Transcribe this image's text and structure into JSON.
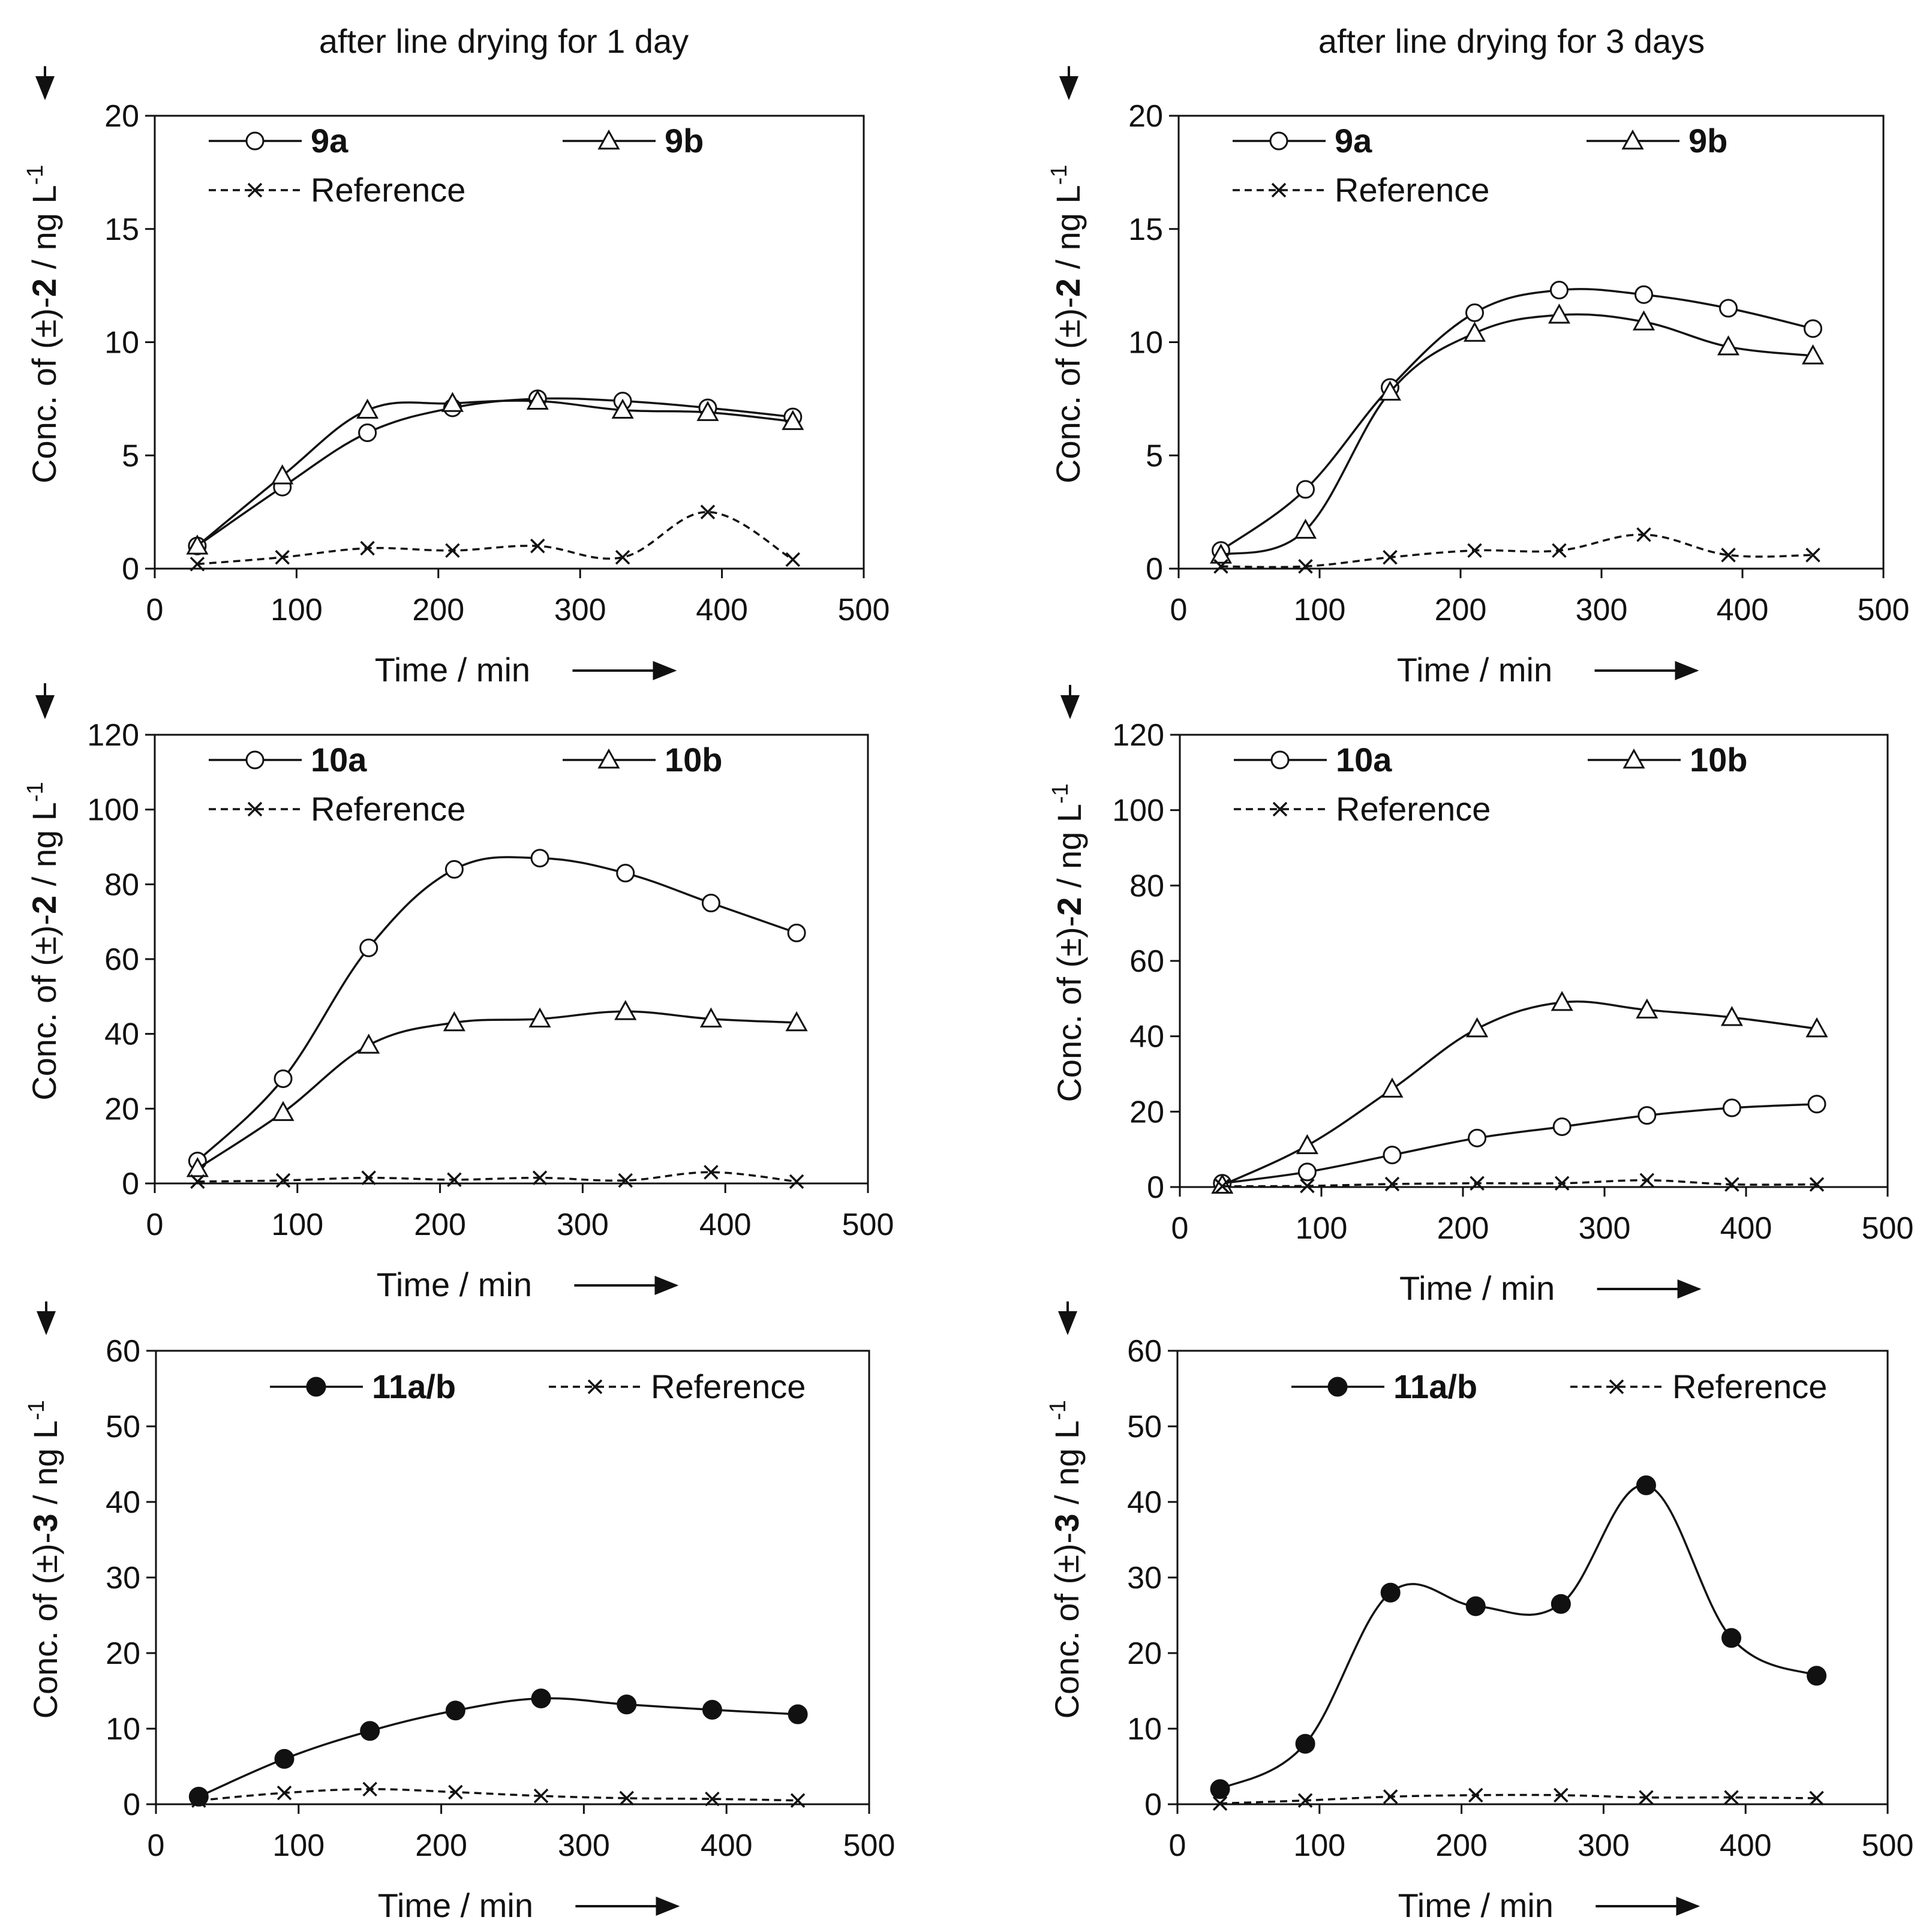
{
  "column_titles": [
    "after line drying for 1 day",
    "after line drying for 3 days"
  ],
  "chart_data": [
    {
      "type": "line",
      "id": "a",
      "xlabel": "Time / min",
      "ylabel_prefix": "Conc. of (±)-",
      "ylabel_compound": "2",
      "ylabel_unit": " / ng L",
      "ylabel_sup": "-1",
      "xlim": [
        0,
        500
      ],
      "ylim": [
        0,
        20
      ],
      "xticks": [
        0,
        100,
        200,
        300,
        400,
        500
      ],
      "yticks": [
        0,
        5,
        10,
        15,
        20
      ],
      "series": [
        {
          "name": "9a",
          "marker": "circle",
          "style": "solid",
          "x": [
            30,
            90,
            150,
            210,
            270,
            330,
            390,
            450
          ],
          "values": [
            1.0,
            3.6,
            6.0,
            7.1,
            7.5,
            7.4,
            7.1,
            6.7
          ]
        },
        {
          "name": "9b",
          "marker": "triangle",
          "style": "solid",
          "x": [
            30,
            90,
            150,
            210,
            270,
            330,
            390,
            450
          ],
          "values": [
            1.0,
            4.1,
            7.0,
            7.3,
            7.4,
            7.0,
            6.9,
            6.5
          ]
        },
        {
          "name": "Reference",
          "marker": "cross",
          "style": "dashed",
          "x": [
            30,
            90,
            150,
            210,
            270,
            330,
            390,
            450
          ],
          "values": [
            0.2,
            0.5,
            0.9,
            0.8,
            1.0,
            0.5,
            2.5,
            0.4
          ]
        }
      ]
    },
    {
      "type": "line",
      "id": "b",
      "xlabel": "Time / min",
      "ylabel_prefix": "Conc. of (±)-",
      "ylabel_compound": "2",
      "ylabel_unit": " / ng L",
      "ylabel_sup": "-1",
      "xlim": [
        0,
        500
      ],
      "ylim": [
        0,
        20
      ],
      "xticks": [
        0,
        100,
        200,
        300,
        400,
        500
      ],
      "yticks": [
        0,
        5,
        10,
        15,
        20
      ],
      "series": [
        {
          "name": "9a",
          "marker": "circle",
          "style": "solid",
          "x": [
            30,
            90,
            150,
            210,
            270,
            330,
            390,
            450
          ],
          "values": [
            0.8,
            3.5,
            8.0,
            11.3,
            12.3,
            12.1,
            11.5,
            10.6
          ]
        },
        {
          "name": "9b",
          "marker": "triangle",
          "style": "solid",
          "x": [
            30,
            90,
            150,
            210,
            270,
            330,
            390,
            450
          ],
          "values": [
            0.6,
            1.7,
            7.8,
            10.4,
            11.2,
            10.9,
            9.8,
            9.4
          ]
        },
        {
          "name": "Reference",
          "marker": "cross",
          "style": "dashed",
          "x": [
            30,
            90,
            150,
            210,
            270,
            330,
            390,
            450
          ],
          "values": [
            0.1,
            0.1,
            0.5,
            0.8,
            0.8,
            1.5,
            0.6,
            0.6
          ]
        }
      ]
    },
    {
      "type": "line",
      "id": "c",
      "xlabel": "Time / min",
      "ylabel_prefix": "Conc. of (±)-",
      "ylabel_compound": "2",
      "ylabel_unit": " / ng L",
      "ylabel_sup": "-1",
      "xlim": [
        0,
        500
      ],
      "ylim": [
        0,
        120
      ],
      "xticks": [
        0,
        100,
        200,
        300,
        400,
        500
      ],
      "yticks": [
        0,
        20,
        40,
        60,
        80,
        100,
        120
      ],
      "series": [
        {
          "name": "10a",
          "marker": "circle",
          "style": "solid",
          "x": [
            30,
            90,
            150,
            210,
            270,
            330,
            390,
            450
          ],
          "values": [
            6,
            28,
            63,
            84,
            87,
            83,
            75,
            67
          ]
        },
        {
          "name": "10b",
          "marker": "triangle",
          "style": "solid",
          "x": [
            30,
            90,
            150,
            210,
            270,
            330,
            390,
            450
          ],
          "values": [
            4,
            19,
            37,
            43,
            44,
            46,
            44,
            43
          ]
        },
        {
          "name": "Reference",
          "marker": "cross",
          "style": "dashed",
          "x": [
            30,
            90,
            150,
            210,
            270,
            330,
            390,
            450
          ],
          "values": [
            0.5,
            0.8,
            1.5,
            1,
            1.5,
            0.8,
            3,
            0.5
          ]
        }
      ]
    },
    {
      "type": "line",
      "id": "d",
      "xlabel": "Time / min",
      "ylabel_prefix": "Conc. of (±)-",
      "ylabel_compound": "2",
      "ylabel_unit": " / ng L",
      "ylabel_sup": "-1",
      "xlim": [
        0,
        500
      ],
      "ylim": [
        0,
        120
      ],
      "xticks": [
        0,
        100,
        200,
        300,
        400,
        500
      ],
      "yticks": [
        0,
        20,
        40,
        60,
        80,
        100,
        120
      ],
      "series": [
        {
          "name": "10a",
          "marker": "circle",
          "style": "solid",
          "x": [
            30,
            90,
            150,
            210,
            270,
            330,
            390,
            450
          ],
          "values": [
            1,
            4,
            8.5,
            13,
            16,
            19,
            21,
            22
          ]
        },
        {
          "name": "10b",
          "marker": "triangle",
          "style": "solid",
          "x": [
            30,
            90,
            150,
            210,
            270,
            330,
            390,
            450
          ],
          "values": [
            0.5,
            11,
            26,
            42,
            49,
            47,
            45,
            42
          ]
        },
        {
          "name": "Reference",
          "marker": "cross",
          "style": "dashed",
          "x": [
            30,
            90,
            150,
            210,
            270,
            330,
            390,
            450
          ],
          "values": [
            0.2,
            0.3,
            0.8,
            1,
            1,
            1.8,
            0.7,
            0.7
          ]
        }
      ]
    },
    {
      "type": "line",
      "id": "e",
      "xlabel": "Time / min",
      "ylabel_prefix": "Conc. of (±)-",
      "ylabel_compound": "3",
      "ylabel_unit": " / ng L",
      "ylabel_sup": "-1",
      "xlim": [
        0,
        500
      ],
      "ylim": [
        0,
        60
      ],
      "xticks": [
        0,
        100,
        200,
        300,
        400,
        500
      ],
      "yticks": [
        0,
        10,
        20,
        30,
        40,
        50,
        60
      ],
      "series": [
        {
          "name": "11a/b",
          "marker": "filled-circle",
          "style": "solid",
          "x": [
            30,
            90,
            150,
            210,
            270,
            330,
            390,
            450
          ],
          "values": [
            1,
            6,
            9.7,
            12.4,
            14,
            13.2,
            12.5,
            11.9
          ]
        },
        {
          "name": "Reference",
          "marker": "cross",
          "style": "dashed",
          "x": [
            30,
            90,
            150,
            210,
            270,
            330,
            390,
            450
          ],
          "values": [
            0.5,
            1.5,
            2,
            1.6,
            1.1,
            0.8,
            0.7,
            0.5
          ]
        }
      ]
    },
    {
      "type": "line",
      "id": "f",
      "xlabel": "Time / min",
      "ylabel_prefix": "Conc. of (±)-",
      "ylabel_compound": "3",
      "ylabel_unit": " / ng L",
      "ylabel_sup": "-1",
      "xlim": [
        0,
        500
      ],
      "ylim": [
        0,
        60
      ],
      "xticks": [
        0,
        100,
        200,
        300,
        400,
        500
      ],
      "yticks": [
        0,
        10,
        20,
        30,
        40,
        50,
        60
      ],
      "series": [
        {
          "name": "11a/b",
          "marker": "filled-circle",
          "style": "solid",
          "x": [
            30,
            90,
            150,
            210,
            270,
            330,
            390,
            450
          ],
          "values": [
            2,
            8,
            28,
            26.2,
            26.5,
            42.2,
            22,
            17
          ]
        },
        {
          "name": "Reference",
          "marker": "cross",
          "style": "dashed",
          "x": [
            30,
            90,
            150,
            210,
            270,
            330,
            390,
            450
          ],
          "values": [
            0.1,
            0.5,
            1,
            1.2,
            1.2,
            0.9,
            0.9,
            0.8
          ]
        }
      ]
    }
  ]
}
